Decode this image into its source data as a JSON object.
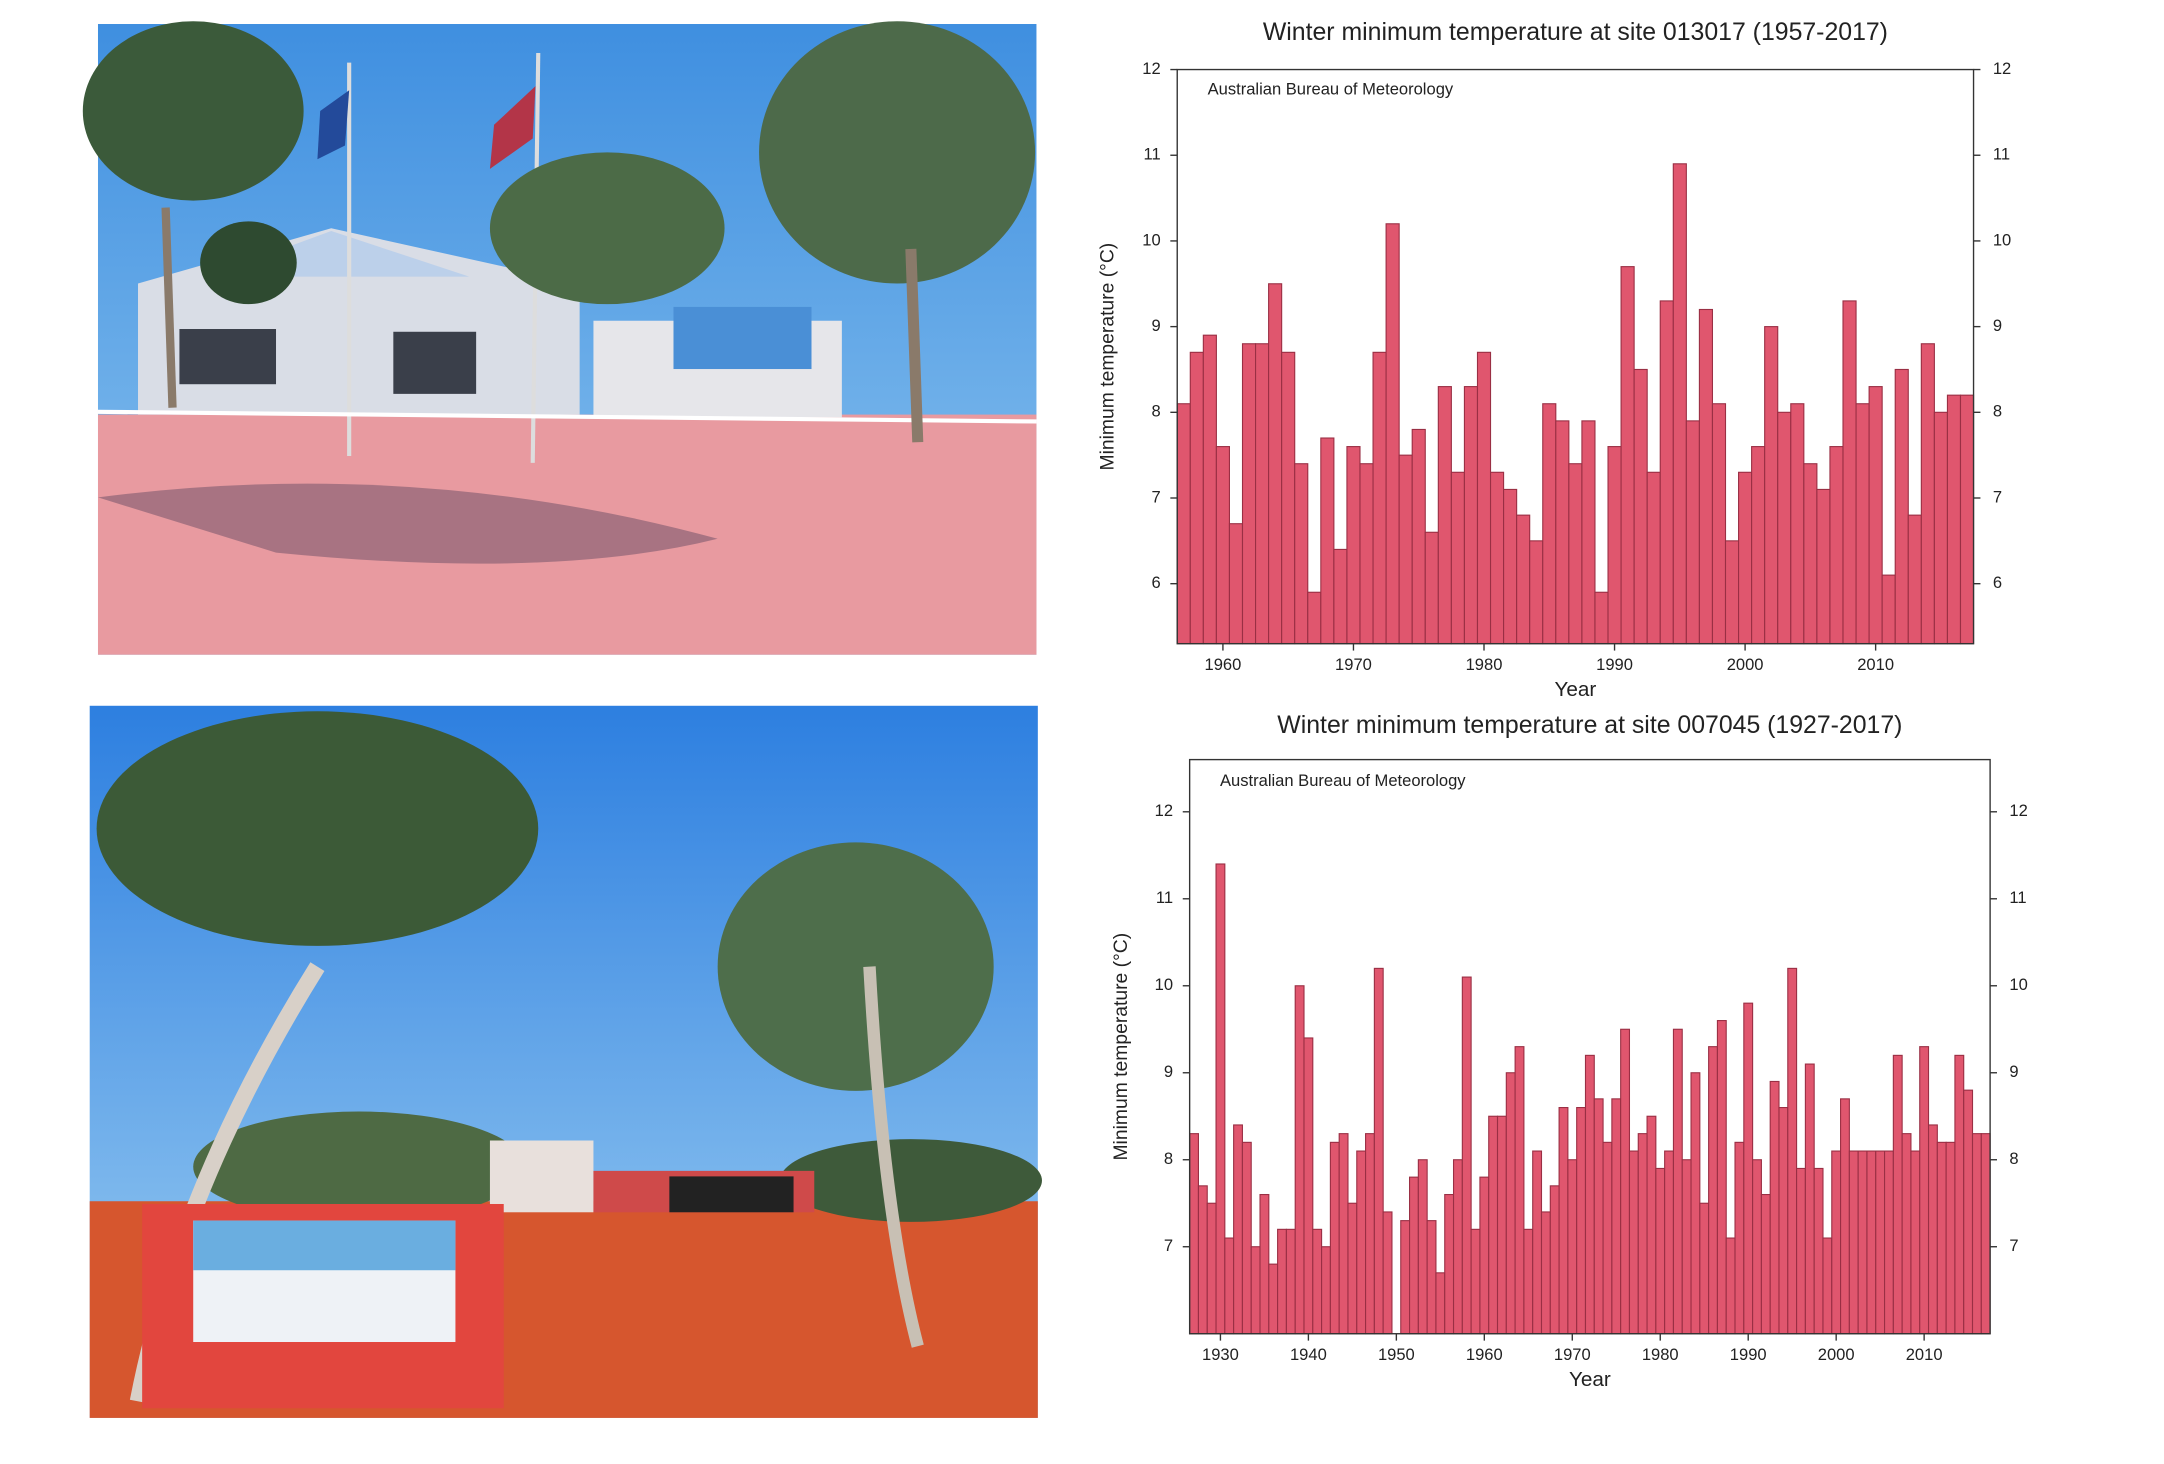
{
  "chart_data": [
    {
      "type": "bar",
      "title": "Winter minimum temperature at site 013017 (1957-2017)",
      "annotation": "Australian Bureau of Meteorology",
      "xlabel": "Year",
      "ylabel": "Minimum temperature  (°C)",
      "color": "#e0566e",
      "x": [
        1957,
        1958,
        1959,
        1960,
        1961,
        1962,
        1963,
        1964,
        1965,
        1966,
        1967,
        1968,
        1969,
        1970,
        1971,
        1972,
        1973,
        1974,
        1975,
        1976,
        1977,
        1978,
        1979,
        1980,
        1981,
        1982,
        1983,
        1984,
        1985,
        1986,
        1987,
        1988,
        1989,
        1990,
        1991,
        1992,
        1993,
        1994,
        1995,
        1996,
        1997,
        1998,
        1999,
        2000,
        2001,
        2002,
        2003,
        2004,
        2005,
        2006,
        2007,
        2008,
        2009,
        2010,
        2011,
        2012,
        2013,
        2014,
        2015,
        2016,
        2017
      ],
      "values": [
        8.1,
        8.7,
        8.9,
        7.6,
        6.7,
        8.8,
        8.8,
        9.5,
        8.7,
        7.4,
        5.9,
        7.7,
        6.4,
        7.6,
        7.4,
        8.7,
        10.2,
        7.5,
        7.8,
        6.6,
        8.3,
        7.3,
        8.3,
        8.7,
        7.3,
        7.1,
        6.8,
        6.5,
        8.1,
        7.9,
        7.4,
        7.9,
        5.9,
        7.6,
        9.7,
        8.5,
        7.3,
        9.3,
        10.9,
        7.9,
        9.2,
        8.1,
        6.5,
        7.3,
        7.6,
        9.0,
        8.0,
        8.1,
        7.4,
        7.1,
        7.6,
        9.3,
        8.1,
        8.3,
        6.1,
        8.5,
        6.8,
        8.8,
        8.0,
        8.2,
        8.2
      ],
      "xlim": [
        1956.5,
        2017.5
      ],
      "xticks": [
        1960,
        1970,
        1980,
        1990,
        2000,
        2010
      ],
      "ylim": [
        5.3,
        12
      ],
      "yticks": [
        6,
        7,
        8,
        9,
        10,
        11,
        12
      ],
      "y2lim": [
        5.3,
        12
      ],
      "y2ticks": [
        6,
        7,
        8,
        9,
        10,
        11,
        12
      ]
    },
    {
      "type": "bar",
      "title": "Winter minimum temperature at site 007045 (1927-2017)",
      "annotation": "Australian Bureau of Meteorology",
      "xlabel": "Year",
      "ylabel": "Minimum temperature  (°C)",
      "color": "#e0566e",
      "x": [
        1927,
        1928,
        1929,
        1930,
        1931,
        1932,
        1933,
        1934,
        1935,
        1936,
        1937,
        1938,
        1939,
        1940,
        1941,
        1942,
        1943,
        1944,
        1945,
        1946,
        1947,
        1948,
        1949,
        1950,
        1951,
        1952,
        1953,
        1954,
        1955,
        1956,
        1957,
        1958,
        1959,
        1960,
        1961,
        1962,
        1963,
        1964,
        1965,
        1966,
        1967,
        1968,
        1969,
        1970,
        1971,
        1972,
        1973,
        1974,
        1975,
        1976,
        1977,
        1978,
        1979,
        1980,
        1981,
        1982,
        1983,
        1984,
        1985,
        1986,
        1987,
        1988,
        1989,
        1990,
        1991,
        1992,
        1993,
        1994,
        1995,
        1996,
        1997,
        1998,
        1999,
        2000,
        2001,
        2002,
        2003,
        2004,
        2005,
        2006,
        2007,
        2008,
        2009,
        2010,
        2011,
        2012,
        2013,
        2014,
        2015,
        2016,
        2017
      ],
      "values": [
        8.3,
        7.7,
        7.5,
        11.4,
        7.1,
        8.4,
        8.2,
        7.0,
        7.6,
        6.8,
        7.2,
        7.2,
        10.0,
        9.4,
        7.2,
        7.0,
        8.2,
        8.3,
        7.5,
        8.1,
        8.3,
        10.2,
        7.4,
        null,
        7.3,
        7.8,
        8.0,
        7.3,
        6.7,
        7.6,
        8.0,
        10.1,
        7.2,
        7.8,
        8.5,
        8.5,
        9.0,
        9.3,
        7.2,
        8.1,
        7.4,
        7.7,
        8.6,
        8.0,
        8.6,
        9.2,
        8.7,
        8.2,
        8.7,
        9.5,
        8.1,
        8.3,
        8.5,
        7.9,
        8.1,
        9.5,
        8.0,
        9.0,
        7.5,
        9.3,
        9.6,
        7.1,
        8.2,
        9.8,
        8.0,
        7.6,
        8.9,
        8.6,
        10.2,
        7.9,
        9.1,
        7.9,
        7.1,
        8.1,
        8.7,
        8.1,
        8.1,
        8.1,
        8.1,
        8.1,
        9.2,
        8.3,
        8.1,
        9.3,
        8.4,
        8.2,
        8.2,
        9.2,
        8.8,
        8.3,
        8.3
      ],
      "xlim": [
        1926.5,
        2017.5
      ],
      "xticks": [
        1930,
        1940,
        1950,
        1960,
        1970,
        1980,
        1990,
        2000,
        2010
      ],
      "ylim": [
        6.0,
        12.6
      ],
      "yticks": [
        7,
        8,
        9,
        10,
        11,
        12
      ],
      "y2lim": [
        6.0,
        12.6
      ],
      "y2ticks": [
        7,
        8,
        9,
        10,
        11,
        12
      ]
    }
  ]
}
